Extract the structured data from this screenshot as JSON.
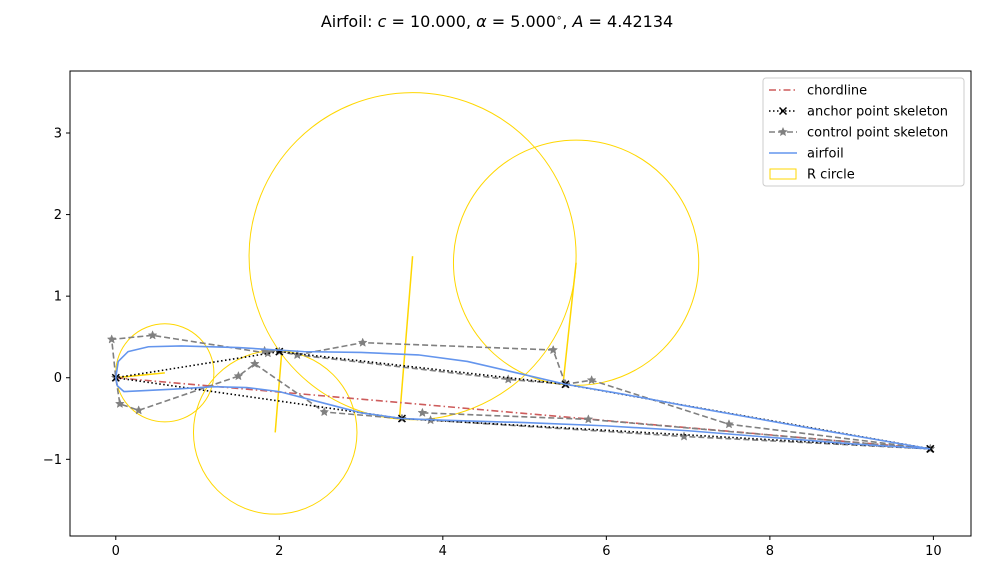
{
  "chart_data": {
    "type": "line",
    "title": "Airfoil: c = 10.000, α = 5.000°, A = 4.42134",
    "title_parts": {
      "prefix": "Airfoil: ",
      "c_sym": "c",
      "c_val": " = 10.000, ",
      "alpha_sym": "α",
      "alpha_val": " = 5.000",
      "deg": "∘",
      "comma": ", ",
      "A_sym": "A",
      "A_val": " = 4.42134"
    },
    "xlabel": "",
    "ylabel": "",
    "xlim": [
      -0.56,
      10.46
    ],
    "ylim": [
      -1.94,
      3.76
    ],
    "xticks": [
      0,
      2,
      4,
      6,
      8,
      10
    ],
    "yticks": [
      -1,
      0,
      1,
      2,
      3
    ],
    "x_tick_labels": [
      "0",
      "2",
      "4",
      "6",
      "8",
      "10"
    ],
    "y_tick_labels": [
      "−1",
      "0",
      "1",
      "2",
      "3"
    ],
    "grid": false,
    "legend_placement": "top-right",
    "colors": {
      "chordline": "#cd5c5c",
      "anchor": "#000000",
      "control": "#808080",
      "airfoil": "#6495ed",
      "rcircle": "#ffd700"
    },
    "legend": [
      {
        "key": "chordline",
        "label": "chordline"
      },
      {
        "key": "anchor",
        "label": "anchor point skeleton"
      },
      {
        "key": "control",
        "label": "control point skeleton"
      },
      {
        "key": "airfoil",
        "label": "airfoil"
      },
      {
        "key": "rcircle",
        "label": "R circle"
      }
    ],
    "series": [
      {
        "key": "chordline",
        "name": "chordline",
        "style": "dash-dot",
        "points": [
          [
            0.0,
            0.0
          ],
          [
            9.962,
            -0.872
          ]
        ]
      },
      {
        "key": "anchor",
        "name": "anchor point skeleton",
        "style": "dotted",
        "marker": "x",
        "segments": [
          [
            [
              9.962,
              -0.872
            ],
            [
              5.5,
              -0.08
            ],
            [
              2.0,
              0.32
            ],
            [
              0.0,
              0.0
            ],
            [
              3.5,
              -0.5
            ],
            [
              9.962,
              -0.872
            ]
          ]
        ]
      },
      {
        "key": "control",
        "name": "control point skeleton",
        "style": "dashed",
        "marker": "star",
        "segments": [
          [
            [
              9.962,
              -0.872
            ],
            [
              7.5,
              -0.57
            ],
            [
              5.82,
              -0.03
            ],
            [
              5.5,
              -0.08
            ],
            [
              4.8,
              -0.02
            ],
            [
              2.22,
              0.28
            ],
            [
              2.0,
              0.32
            ],
            [
              1.82,
              0.33
            ]
          ],
          [
            [
              1.86,
              0.3
            ],
            [
              0.45,
              0.52
            ],
            [
              -0.05,
              0.47
            ],
            [
              0.0,
              0.0
            ],
            [
              0.05,
              -0.32
            ],
            [
              0.28,
              -0.4
            ],
            [
              1.5,
              0.02
            ],
            [
              1.7,
              0.17
            ],
            [
              2.55,
              -0.42
            ],
            [
              3.5,
              -0.5
            ],
            [
              3.85,
              -0.52
            ],
            [
              6.95,
              -0.72
            ],
            [
              9.962,
              -0.872
            ]
          ],
          [
            [
              3.75,
              -0.43
            ],
            [
              5.78,
              -0.51
            ],
            [
              9.962,
              -0.872
            ]
          ],
          [
            [
              2.22,
              0.28
            ],
            [
              3.02,
              0.43
            ],
            [
              5.35,
              0.34
            ],
            [
              5.5,
              -0.08
            ]
          ]
        ]
      },
      {
        "key": "airfoil",
        "name": "airfoil",
        "style": "solid",
        "segments": [
          [
            [
              9.962,
              -0.872
            ],
            [
              8.5,
              -0.62
            ],
            [
              7.0,
              -0.35
            ],
            [
              6.2,
              -0.2
            ],
            [
              5.5,
              -0.08
            ],
            [
              4.9,
              0.06
            ],
            [
              4.3,
              0.2
            ],
            [
              3.7,
              0.28
            ],
            [
              3.0,
              0.31
            ],
            [
              2.3,
              0.32
            ],
            [
              1.5,
              0.37
            ],
            [
              0.8,
              0.39
            ],
            [
              0.4,
              0.38
            ],
            [
              0.15,
              0.32
            ],
            [
              0.03,
              0.2
            ],
            [
              0.0,
              0.0
            ],
            [
              0.02,
              -0.1
            ],
            [
              0.1,
              -0.17
            ],
            [
              0.3,
              -0.16
            ],
            [
              0.7,
              -0.14
            ],
            [
              1.2,
              -0.11
            ],
            [
              1.6,
              -0.12
            ],
            [
              2.0,
              -0.17
            ],
            [
              2.5,
              -0.3
            ],
            [
              3.0,
              -0.43
            ],
            [
              3.5,
              -0.5
            ],
            [
              4.0,
              -0.52
            ],
            [
              5.0,
              -0.55
            ],
            [
              6.0,
              -0.59
            ],
            [
              7.0,
              -0.65
            ],
            [
              8.0,
              -0.73
            ],
            [
              9.0,
              -0.81
            ],
            [
              9.962,
              -0.872
            ]
          ]
        ]
      }
    ],
    "r_circles": [
      {
        "cx": 0.6,
        "cy": 0.06,
        "r": 0.6,
        "radius_from": [
          0.0,
          0.0
        ]
      },
      {
        "cx": 1.95,
        "cy": -0.67,
        "r": 1.0,
        "radius_from": [
          2.03,
          0.32
        ]
      },
      {
        "cx": 3.63,
        "cy": 1.49,
        "r": 2.0,
        "radius_from": [
          3.47,
          -0.5
        ]
      },
      {
        "cx": 5.63,
        "cy": 1.41,
        "r": 1.5,
        "radius_from": [
          5.47,
          -0.08
        ]
      }
    ]
  }
}
